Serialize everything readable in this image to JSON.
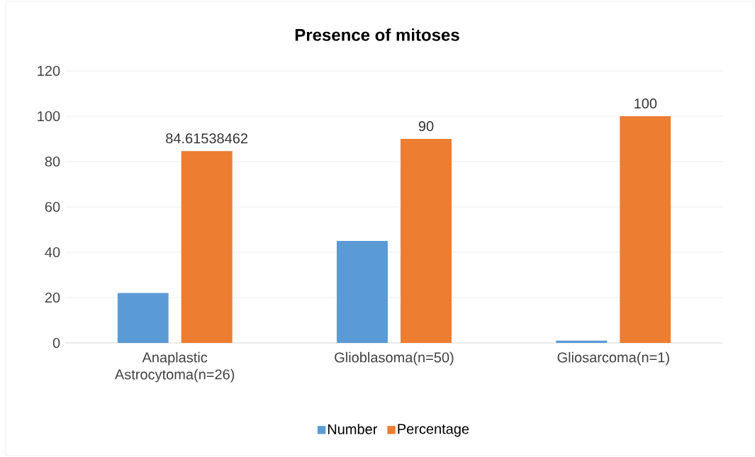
{
  "chart_data": {
    "type": "bar",
    "title": "Presence of mitoses",
    "categories": [
      "Anaplastic Astrocytoma(n=26)",
      "Glioblasoma(n=50)",
      "Gliosarcoma(n=1)"
    ],
    "series": [
      {
        "name": "Number",
        "color": "#5b9bd5",
        "values": [
          22,
          45,
          1
        ]
      },
      {
        "name": "Percentage",
        "color": "#ed7d31",
        "values": [
          84.61538462,
          90,
          100
        ],
        "value_labels": [
          "84.61538462",
          "90",
          "100"
        ]
      }
    ],
    "ylim": [
      0,
      120
    ],
    "yticks": [
      0,
      20,
      40,
      60,
      80,
      100,
      120
    ],
    "grid": "y",
    "legend": "bottom"
  }
}
